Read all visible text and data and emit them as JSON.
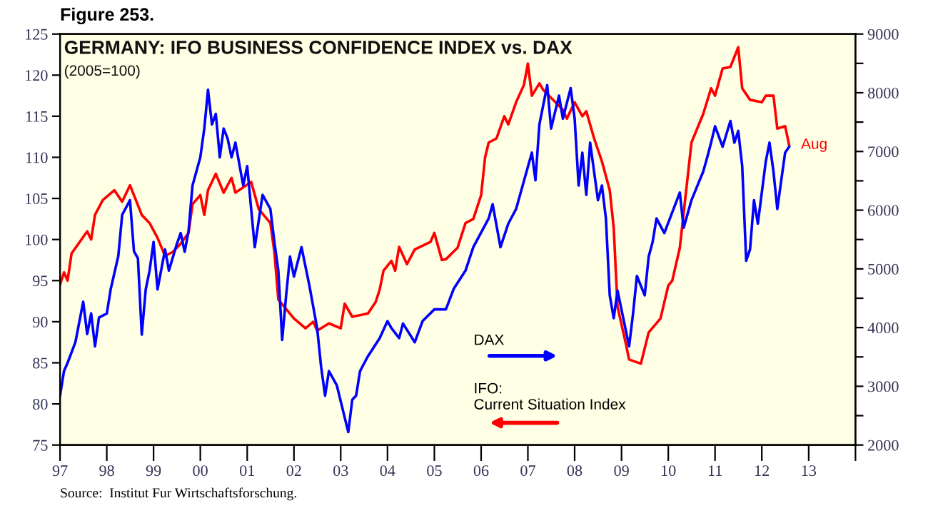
{
  "chart_data": {
    "type": "line",
    "title": "GERMANY: IFO BUSINESS CONFIDENCE INDEX vs. DAX",
    "subtitle": "(2005=100)",
    "annotations": [
      "Figure 253.",
      "Source:  Institut Fur Wirtschaftsforschung.",
      {
        "text": "Aug",
        "x": "2012-08",
        "y": 111.5
      }
    ],
    "xlim": [
      "1997",
      "2014"
    ],
    "xticks": [
      {
        "value": "1997",
        "label": "97"
      },
      {
        "value": "1998",
        "label": "98"
      },
      {
        "value": "1999",
        "label": "99"
      },
      {
        "value": "2000",
        "label": "00"
      },
      {
        "value": "2001",
        "label": "01"
      },
      {
        "value": "2002",
        "label": "02"
      },
      {
        "value": "2003",
        "label": "03"
      },
      {
        "value": "2004",
        "label": "04"
      },
      {
        "value": "2005",
        "label": "05"
      },
      {
        "value": "2006",
        "label": "06"
      },
      {
        "value": "2007",
        "label": "07"
      },
      {
        "value": "2008",
        "label": "08"
      },
      {
        "value": "2009",
        "label": "09"
      },
      {
        "value": "2010",
        "label": "10"
      },
      {
        "value": "2011",
        "label": "11"
      },
      {
        "value": "2012",
        "label": "12"
      },
      {
        "value": "2013",
        "label": "13"
      },
      {
        "value": "2014",
        "label": null
      }
    ],
    "ylim": [
      75,
      125
    ],
    "yticks": [
      75,
      80,
      85,
      90,
      95,
      100,
      105,
      110,
      115,
      120,
      125
    ],
    "y2lim": [
      2000,
      9000
    ],
    "y2ticks": [
      2000,
      {
        "value": 2500,
        "label": null
      },
      3000,
      {
        "value": 3500,
        "label": null
      },
      4000,
      {
        "value": 4500,
        "label": null
      },
      5000,
      {
        "value": 5500,
        "label": null
      },
      6000,
      {
        "value": 6500,
        "label": null
      },
      7000,
      {
        "value": 7500,
        "label": null
      },
      8000,
      {
        "value": 8500,
        "label": null
      },
      9000
    ],
    "legend": "bottom",
    "series": [
      {
        "name": "IFO:\nCurrent Situation Index",
        "color": "#ff0000",
        "x": [
          "1997-01",
          "1997-02",
          "1997-03",
          "1997-04",
          "1997-08",
          "1997-09",
          "1997-10",
          "1997-12",
          "1998-03",
          "1998-05",
          "1998-07",
          "1998-10",
          "1998-12",
          "1999-02",
          "1999-04",
          "1999-06",
          "1999-08",
          "1999-10",
          "1999-11",
          "2000-01",
          "2000-02",
          "2000-03",
          "2000-05",
          "2000-07",
          "2000-09",
          "2000-10",
          "2001-02",
          "2001-04",
          "2001-07",
          "2001-08",
          "2001-09",
          "2002-01",
          "2002-04",
          "2002-06",
          "2002-07",
          "2002-10",
          "2003-01",
          "2003-02",
          "2003-04",
          "2003-08",
          "2003-10",
          "2003-11",
          "2003-12",
          "2004-02",
          "2004-03",
          "2004-04",
          "2004-06",
          "2004-08",
          "2004-12",
          "2005-01",
          "2005-03",
          "2005-04",
          "2005-07",
          "2005-09",
          "2005-11",
          "2006-01",
          "2006-02",
          "2006-03",
          "2006-05",
          "2006-07",
          "2006-08",
          "2006-10",
          "2006-12",
          "2007-01",
          "2007-02",
          "2007-04",
          "2007-05",
          "2007-10",
          "2007-11",
          "2008-01",
          "2008-03",
          "2008-04",
          "2008-06",
          "2008-08",
          "2008-10",
          "2008-11",
          "2008-12",
          "2009-02",
          "2009-03",
          "2009-06",
          "2009-08",
          "2009-11",
          "2010-01",
          "2010-02",
          "2010-04",
          "2010-07",
          "2010-10",
          "2010-12",
          "2011-01",
          "2011-03",
          "2011-05",
          "2011-07",
          "2011-08",
          "2011-10",
          "2012-01",
          "2012-02",
          "2012-04",
          "2012-05",
          "2012-07",
          "2012-08"
        ],
        "values": [
          94.5,
          96,
          95,
          98.3,
          101,
          100,
          103,
          104.8,
          106,
          104.6,
          106.6,
          103,
          102,
          100.2,
          98,
          98.5,
          99.5,
          100.8,
          104.3,
          105.4,
          103,
          106,
          108,
          105.7,
          107.5,
          105.7,
          107,
          103.7,
          102,
          98.5,
          92.7,
          90.4,
          89.2,
          90,
          88.9,
          89.8,
          89.2,
          92.2,
          90.6,
          91,
          92.4,
          93.9,
          96.2,
          97.4,
          96.2,
          99.1,
          97,
          98.8,
          99.7,
          100.8,
          97.5,
          97.6,
          99,
          102,
          102.5,
          105.4,
          110,
          111.8,
          112.3,
          115,
          114,
          116.7,
          118.8,
          121.4,
          117.5,
          119,
          118.2,
          115.8,
          114.7,
          116.7,
          115,
          115.6,
          112.3,
          109.5,
          106,
          101.4,
          91.8,
          87.5,
          85.4,
          84.9,
          88.7,
          90.4,
          94.4,
          95,
          99,
          111.8,
          115.3,
          118.4,
          117.5,
          120.8,
          121,
          123.4,
          118.4,
          117,
          116.7,
          117.5,
          117.5,
          113.5,
          113.8,
          111.5
        ]
      },
      {
        "name": "DAX",
        "color": "#0000ff",
        "axis": "y2",
        "x": [
          "1997-01",
          "1997-02",
          "1997-03",
          "1997-05",
          "1997-07",
          "1997-08",
          "1997-09",
          "1997-10",
          "1997-11",
          "1998-01",
          "1998-02",
          "1998-04",
          "1998-05",
          "1998-07",
          "1998-08",
          "1998-09",
          "1998-10",
          "1998-11",
          "1998-12",
          "1999-01",
          "1999-02",
          "1999-04",
          "1999-05",
          "1999-07",
          "1999-08",
          "1999-09",
          "1999-10",
          "1999-11",
          "2000-01",
          "2000-02",
          "2000-03",
          "2000-04",
          "2000-05",
          "2000-06",
          "2000-07",
          "2000-08",
          "2000-09",
          "2000-10",
          "2000-12",
          "2001-01",
          "2001-02",
          "2001-03",
          "2001-05",
          "2001-07",
          "2001-08",
          "2001-09",
          "2001-10",
          "2001-11",
          "2001-12",
          "2002-01",
          "2002-03",
          "2002-05",
          "2002-07",
          "2002-08",
          "2002-09",
          "2002-10",
          "2002-12",
          "2003-03",
          "2003-04",
          "2003-05",
          "2003-06",
          "2003-08",
          "2003-11",
          "2004-01",
          "2004-02",
          "2004-04",
          "2004-05",
          "2004-08",
          "2004-10",
          "2005-01",
          "2005-04",
          "2005-06",
          "2005-09",
          "2005-11",
          "2006-03",
          "2006-04",
          "2006-06",
          "2006-08",
          "2006-10",
          "2007-02",
          "2007-03",
          "2007-04",
          "2007-06",
          "2007-07",
          "2007-09",
          "2007-10",
          "2007-12",
          "2008-01",
          "2008-02",
          "2008-03",
          "2008-04",
          "2008-05",
          "2008-07",
          "2008-08",
          "2008-09",
          "2008-10",
          "2008-11",
          "2008-12",
          "2009-03",
          "2009-04",
          "2009-05",
          "2009-07",
          "2009-08",
          "2009-09",
          "2009-10",
          "2009-12",
          "2010-04",
          "2010-05",
          "2010-07",
          "2010-10",
          "2010-11",
          "2010-12",
          "2011-01",
          "2011-03",
          "2011-05",
          "2011-06",
          "2011-07",
          "2011-08",
          "2011-09",
          "2011-10",
          "2011-11",
          "2011-12",
          "2012-02",
          "2012-03",
          "2012-04",
          "2012-05",
          "2012-06",
          "2012-07",
          "2012-08"
        ],
        "values": [
          2840,
          3260,
          3400,
          3750,
          4440,
          3890,
          4240,
          3680,
          4170,
          4240,
          4660,
          5220,
          5920,
          6170,
          5300,
          5180,
          3880,
          4650,
          4970,
          5460,
          4650,
          5330,
          4970,
          5420,
          5610,
          5290,
          5640,
          6420,
          6900,
          7390,
          8050,
          7460,
          7640,
          6900,
          7390,
          7220,
          6900,
          7150,
          6420,
          6750,
          6020,
          5370,
          6260,
          6020,
          5460,
          4970,
          3790,
          4550,
          5210,
          4870,
          5370,
          4720,
          3990,
          3330,
          2840,
          3260,
          3020,
          2220,
          2770,
          2840,
          3260,
          3510,
          3820,
          4110,
          3990,
          3820,
          4070,
          3750,
          4110,
          4310,
          4310,
          4660,
          4970,
          5370,
          5860,
          6100,
          5370,
          5770,
          6020,
          6980,
          6510,
          7460,
          8130,
          7390,
          7950,
          7560,
          8080,
          7560,
          6420,
          6980,
          6260,
          7150,
          6170,
          6420,
          5860,
          4550,
          4160,
          4630,
          3680,
          4240,
          4880,
          4550,
          5210,
          5460,
          5860,
          5610,
          6300,
          5700,
          6170,
          6660,
          6900,
          7150,
          7430,
          7080,
          7520,
          7150,
          7350,
          6750,
          5140,
          5330,
          6170,
          5770,
          6830,
          7150,
          6660,
          6020,
          6510,
          6980,
          7080
        ]
      }
    ]
  }
}
